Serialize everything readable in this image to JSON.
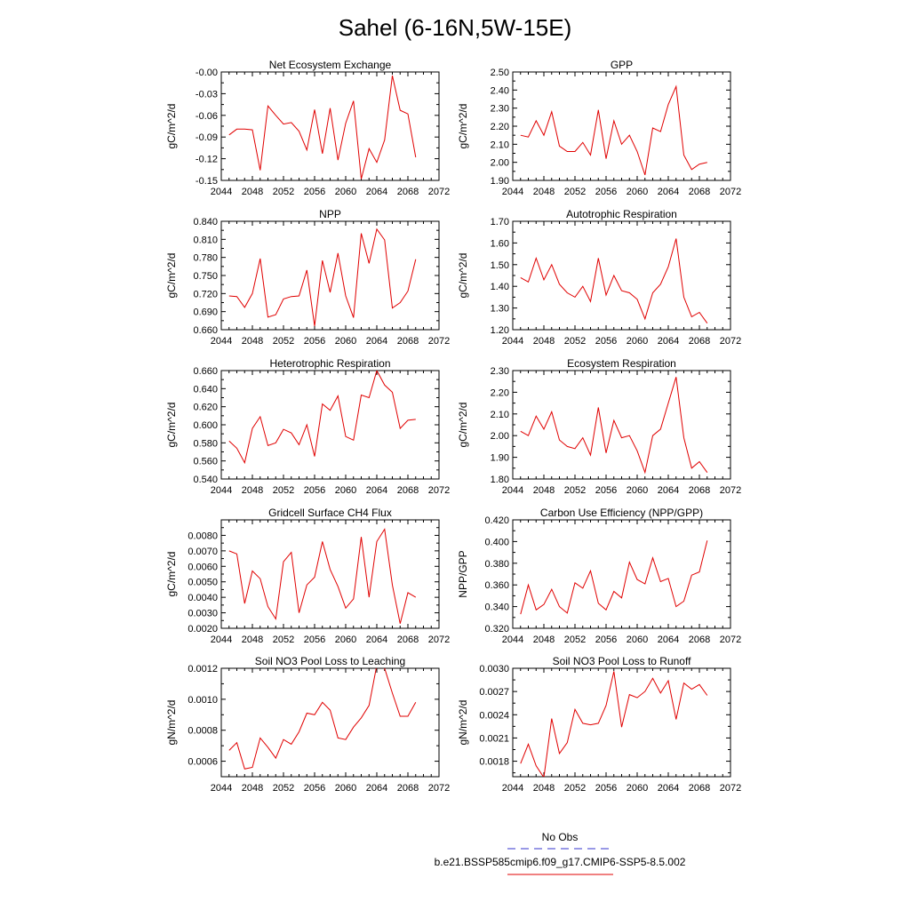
{
  "figure": {
    "title": "Sahel (6-16N,5W-15E)",
    "legend": {
      "entries": [
        {
          "label": "No Obs",
          "color": "#3333cc",
          "dash": true
        },
        {
          "label": "b.e21.BSSP585cmip6.f09_g17.CMIP6-SSP5-8.5.002",
          "color": "#e00000",
          "dash": false
        }
      ]
    }
  },
  "chart_data": [
    {
      "type": "line",
      "title": "Net Ecosystem Exchange",
      "xlabel": "",
      "ylabel": "gC/m^2/d",
      "xlim": [
        2044,
        2072
      ],
      "ylim": [
        -0.15,
        0.0
      ],
      "xticks": [
        "2044",
        "2048",
        "2052",
        "2056",
        "2060",
        "2064",
        "2068",
        "2072"
      ],
      "yticks": [
        "-0.15",
        "-0.12",
        "-0.09",
        "-0.06",
        "-0.03",
        "-0.00"
      ],
      "x": [
        2045,
        2046,
        2047,
        2048,
        2049,
        2050,
        2051,
        2052,
        2053,
        2054,
        2055,
        2056,
        2057,
        2058,
        2059,
        2060,
        2061,
        2062,
        2063,
        2064,
        2065,
        2066,
        2067,
        2068,
        2069
      ],
      "series": [
        {
          "color": "#e00000",
          "values": [
            -0.087,
            -0.079,
            -0.079,
            -0.08,
            -0.136,
            -0.047,
            -0.06,
            -0.072,
            -0.07,
            -0.082,
            -0.108,
            -0.052,
            -0.113,
            -0.05,
            -0.122,
            -0.071,
            -0.04,
            -0.148,
            -0.106,
            -0.125,
            -0.094,
            -0.005,
            -0.053,
            -0.058,
            -0.118
          ]
        }
      ]
    },
    {
      "type": "line",
      "title": "GPP",
      "xlabel": "",
      "ylabel": "gC/m^2/d",
      "xlim": [
        2044,
        2072
      ],
      "ylim": [
        1.9,
        2.5
      ],
      "xticks": [
        "2044",
        "2048",
        "2052",
        "2056",
        "2060",
        "2064",
        "2068",
        "2072"
      ],
      "yticks": [
        "1.90",
        "2.00",
        "2.10",
        "2.20",
        "2.30",
        "2.40",
        "2.50"
      ],
      "x": [
        2045,
        2046,
        2047,
        2048,
        2049,
        2050,
        2051,
        2052,
        2053,
        2054,
        2055,
        2056,
        2057,
        2058,
        2059,
        2060,
        2061,
        2062,
        2063,
        2064,
        2065,
        2066,
        2067,
        2068,
        2069
      ],
      "series": [
        {
          "color": "#e00000",
          "values": [
            2.15,
            2.14,
            2.23,
            2.15,
            2.28,
            2.09,
            2.06,
            2.06,
            2.11,
            2.04,
            2.29,
            2.02,
            2.23,
            2.1,
            2.15,
            2.06,
            1.93,
            2.19,
            2.17,
            2.32,
            2.42,
            2.04,
            1.96,
            1.99,
            2.0
          ]
        }
      ]
    },
    {
      "type": "line",
      "title": "NPP",
      "xlabel": "",
      "ylabel": "gC/m^2/d",
      "xlim": [
        2044,
        2072
      ],
      "ylim": [
        0.66,
        0.84
      ],
      "xticks": [
        "2044",
        "2048",
        "2052",
        "2056",
        "2060",
        "2064",
        "2068",
        "2072"
      ],
      "yticks": [
        "0.660",
        "0.690",
        "0.720",
        "0.750",
        "0.780",
        "0.810",
        "0.840"
      ],
      "x": [
        2045,
        2046,
        2047,
        2048,
        2049,
        2050,
        2051,
        2052,
        2053,
        2054,
        2055,
        2056,
        2057,
        2058,
        2059,
        2060,
        2061,
        2062,
        2063,
        2064,
        2065,
        2066,
        2067,
        2068,
        2069
      ],
      "series": [
        {
          "color": "#e00000",
          "values": [
            0.716,
            0.715,
            0.697,
            0.72,
            0.778,
            0.681,
            0.685,
            0.711,
            0.715,
            0.716,
            0.759,
            0.666,
            0.775,
            0.722,
            0.787,
            0.716,
            0.68,
            0.82,
            0.77,
            0.827,
            0.809,
            0.696,
            0.705,
            0.724,
            0.777
          ]
        }
      ]
    },
    {
      "type": "line",
      "title": "Autotrophic Respiration",
      "xlabel": "",
      "ylabel": "gC/m^2/d",
      "xlim": [
        2044,
        2072
      ],
      "ylim": [
        1.2,
        1.7
      ],
      "xticks": [
        "2044",
        "2048",
        "2052",
        "2056",
        "2060",
        "2064",
        "2068",
        "2072"
      ],
      "yticks": [
        "1.20",
        "1.30",
        "1.40",
        "1.50",
        "1.60",
        "1.70"
      ],
      "x": [
        2045,
        2046,
        2047,
        2048,
        2049,
        2050,
        2051,
        2052,
        2053,
        2054,
        2055,
        2056,
        2057,
        2058,
        2059,
        2060,
        2061,
        2062,
        2063,
        2064,
        2065,
        2066,
        2067,
        2068,
        2069
      ],
      "series": [
        {
          "color": "#e00000",
          "values": [
            1.44,
            1.42,
            1.53,
            1.43,
            1.5,
            1.41,
            1.37,
            1.35,
            1.4,
            1.33,
            1.53,
            1.36,
            1.45,
            1.38,
            1.37,
            1.34,
            1.25,
            1.37,
            1.41,
            1.49,
            1.62,
            1.35,
            1.26,
            1.28,
            1.23
          ]
        }
      ]
    },
    {
      "type": "line",
      "title": "Heterotrophic Respiration",
      "xlabel": "",
      "ylabel": "gC/m^2/d",
      "xlim": [
        2044,
        2072
      ],
      "ylim": [
        0.54,
        0.66
      ],
      "xticks": [
        "2044",
        "2048",
        "2052",
        "2056",
        "2060",
        "2064",
        "2068",
        "2072"
      ],
      "yticks": [
        "0.540",
        "0.560",
        "0.580",
        "0.600",
        "0.620",
        "0.640",
        "0.660"
      ],
      "x": [
        2045,
        2046,
        2047,
        2048,
        2049,
        2050,
        2051,
        2052,
        2053,
        2054,
        2055,
        2056,
        2057,
        2058,
        2059,
        2060,
        2061,
        2062,
        2063,
        2064,
        2065,
        2066,
        2067,
        2068,
        2069
      ],
      "series": [
        {
          "color": "#e00000",
          "values": [
            0.582,
            0.574,
            0.558,
            0.596,
            0.609,
            0.577,
            0.58,
            0.595,
            0.591,
            0.578,
            0.6,
            0.565,
            0.623,
            0.616,
            0.632,
            0.587,
            0.583,
            0.633,
            0.63,
            0.66,
            0.644,
            0.636,
            0.596,
            0.605,
            0.606
          ]
        }
      ]
    },
    {
      "type": "line",
      "title": "Ecosystem Respiration",
      "xlabel": "",
      "ylabel": "gC/m^2/d",
      "xlim": [
        2044,
        2072
      ],
      "ylim": [
        1.8,
        2.3
      ],
      "xticks": [
        "2044",
        "2048",
        "2052",
        "2056",
        "2060",
        "2064",
        "2068",
        "2072"
      ],
      "yticks": [
        "1.80",
        "1.90",
        "2.00",
        "2.10",
        "2.20",
        "2.30"
      ],
      "x": [
        2045,
        2046,
        2047,
        2048,
        2049,
        2050,
        2051,
        2052,
        2053,
        2054,
        2055,
        2056,
        2057,
        2058,
        2059,
        2060,
        2061,
        2062,
        2063,
        2064,
        2065,
        2066,
        2067,
        2068,
        2069
      ],
      "series": [
        {
          "color": "#e00000",
          "values": [
            2.02,
            2.0,
            2.09,
            2.03,
            2.11,
            1.98,
            1.95,
            1.94,
            1.99,
            1.91,
            2.13,
            1.92,
            2.07,
            1.99,
            2.0,
            1.93,
            1.83,
            2.0,
            2.03,
            2.15,
            2.27,
            1.99,
            1.85,
            1.88,
            1.83
          ]
        }
      ]
    },
    {
      "type": "line",
      "title": "Gridcell Surface CH4 Flux",
      "xlabel": "",
      "ylabel": "gC/m^2/d",
      "xlim": [
        2044,
        2072
      ],
      "ylim": [
        0.002,
        0.009
      ],
      "xticks": [
        "2044",
        "2048",
        "2052",
        "2056",
        "2060",
        "2064",
        "2068",
        "2072"
      ],
      "yticks": [
        "0.0020",
        "0.0030",
        "0.0040",
        "0.0050",
        "0.0060",
        "0.0070",
        "0.0080"
      ],
      "x": [
        2045,
        2046,
        2047,
        2048,
        2049,
        2050,
        2051,
        2052,
        2053,
        2054,
        2055,
        2056,
        2057,
        2058,
        2059,
        2060,
        2061,
        2062,
        2063,
        2064,
        2065,
        2066,
        2067,
        2068,
        2069
      ],
      "series": [
        {
          "color": "#e00000",
          "values": [
            0.007,
            0.0068,
            0.0036,
            0.0057,
            0.0052,
            0.0034,
            0.0026,
            0.0063,
            0.0069,
            0.003,
            0.0048,
            0.0053,
            0.0076,
            0.0058,
            0.0047,
            0.0033,
            0.0039,
            0.0079,
            0.004,
            0.0076,
            0.0084,
            0.0048,
            0.0023,
            0.0043,
            0.004
          ]
        }
      ]
    },
    {
      "type": "line",
      "title": "Carbon Use Efficiency (NPP/GPP)",
      "xlabel": "",
      "ylabel": "NPP/GPP",
      "xlim": [
        2044,
        2072
      ],
      "ylim": [
        0.32,
        0.42
      ],
      "xticks": [
        "2044",
        "2048",
        "2052",
        "2056",
        "2060",
        "2064",
        "2068",
        "2072"
      ],
      "yticks": [
        "0.320",
        "0.340",
        "0.360",
        "0.380",
        "0.400",
        "0.420"
      ],
      "x": [
        2045,
        2046,
        2047,
        2048,
        2049,
        2050,
        2051,
        2052,
        2053,
        2054,
        2055,
        2056,
        2057,
        2058,
        2059,
        2060,
        2061,
        2062,
        2063,
        2064,
        2065,
        2066,
        2067,
        2068,
        2069
      ],
      "series": [
        {
          "color": "#e00000",
          "values": [
            0.333,
            0.36,
            0.337,
            0.342,
            0.356,
            0.34,
            0.334,
            0.362,
            0.357,
            0.373,
            0.343,
            0.337,
            0.354,
            0.348,
            0.381,
            0.365,
            0.361,
            0.385,
            0.363,
            0.366,
            0.34,
            0.345,
            0.369,
            0.372,
            0.401
          ]
        }
      ]
    },
    {
      "type": "line",
      "title": "Soil NO3 Pool Loss to Leaching",
      "xlabel": "",
      "ylabel": "gN/m^2/d",
      "xlim": [
        2044,
        2072
      ],
      "ylim": [
        0.0005,
        0.0012
      ],
      "xticks": [
        "2044",
        "2048",
        "2052",
        "2056",
        "2060",
        "2064",
        "2068",
        "2072"
      ],
      "yticks": [
        "0.0006",
        "0.0008",
        "0.0010",
        "0.0012"
      ],
      "x": [
        2045,
        2046,
        2047,
        2048,
        2049,
        2050,
        2051,
        2052,
        2053,
        2054,
        2055,
        2056,
        2057,
        2058,
        2059,
        2060,
        2061,
        2062,
        2063,
        2064,
        2065,
        2066,
        2067,
        2068,
        2069
      ],
      "series": [
        {
          "color": "#e00000",
          "values": [
            0.00067,
            0.00072,
            0.00055,
            0.00056,
            0.00075,
            0.00069,
            0.00062,
            0.00074,
            0.00071,
            0.00079,
            0.00091,
            0.0009,
            0.00098,
            0.00093,
            0.00075,
            0.00074,
            0.00082,
            0.00088,
            0.00096,
            0.00122,
            0.0012,
            0.00104,
            0.00089,
            0.00089,
            0.00098
          ]
        }
      ]
    },
    {
      "type": "line",
      "title": "Soil NO3 Pool Loss to Runoff",
      "xlabel": "",
      "ylabel": "gN/m^2/d",
      "xlim": [
        2044,
        2072
      ],
      "ylim": [
        0.0016,
        0.003
      ],
      "xticks": [
        "2044",
        "2048",
        "2052",
        "2056",
        "2060",
        "2064",
        "2068",
        "2072"
      ],
      "yticks": [
        "0.0018",
        "0.0021",
        "0.0024",
        "0.0027",
        "0.0030"
      ],
      "x": [
        2045,
        2046,
        2047,
        2048,
        2049,
        2050,
        2051,
        2052,
        2053,
        2054,
        2055,
        2056,
        2057,
        2058,
        2059,
        2060,
        2061,
        2062,
        2063,
        2064,
        2065,
        2066,
        2067,
        2068,
        2069
      ],
      "series": [
        {
          "color": "#e00000",
          "values": [
            0.00177,
            0.00202,
            0.00174,
            0.00159,
            0.00235,
            0.0019,
            0.00204,
            0.00247,
            0.00229,
            0.00227,
            0.00229,
            0.00252,
            0.00296,
            0.00224,
            0.00266,
            0.00262,
            0.0027,
            0.00287,
            0.00268,
            0.00284,
            0.00234,
            0.00281,
            0.00273,
            0.00279,
            0.00265
          ]
        }
      ]
    }
  ]
}
